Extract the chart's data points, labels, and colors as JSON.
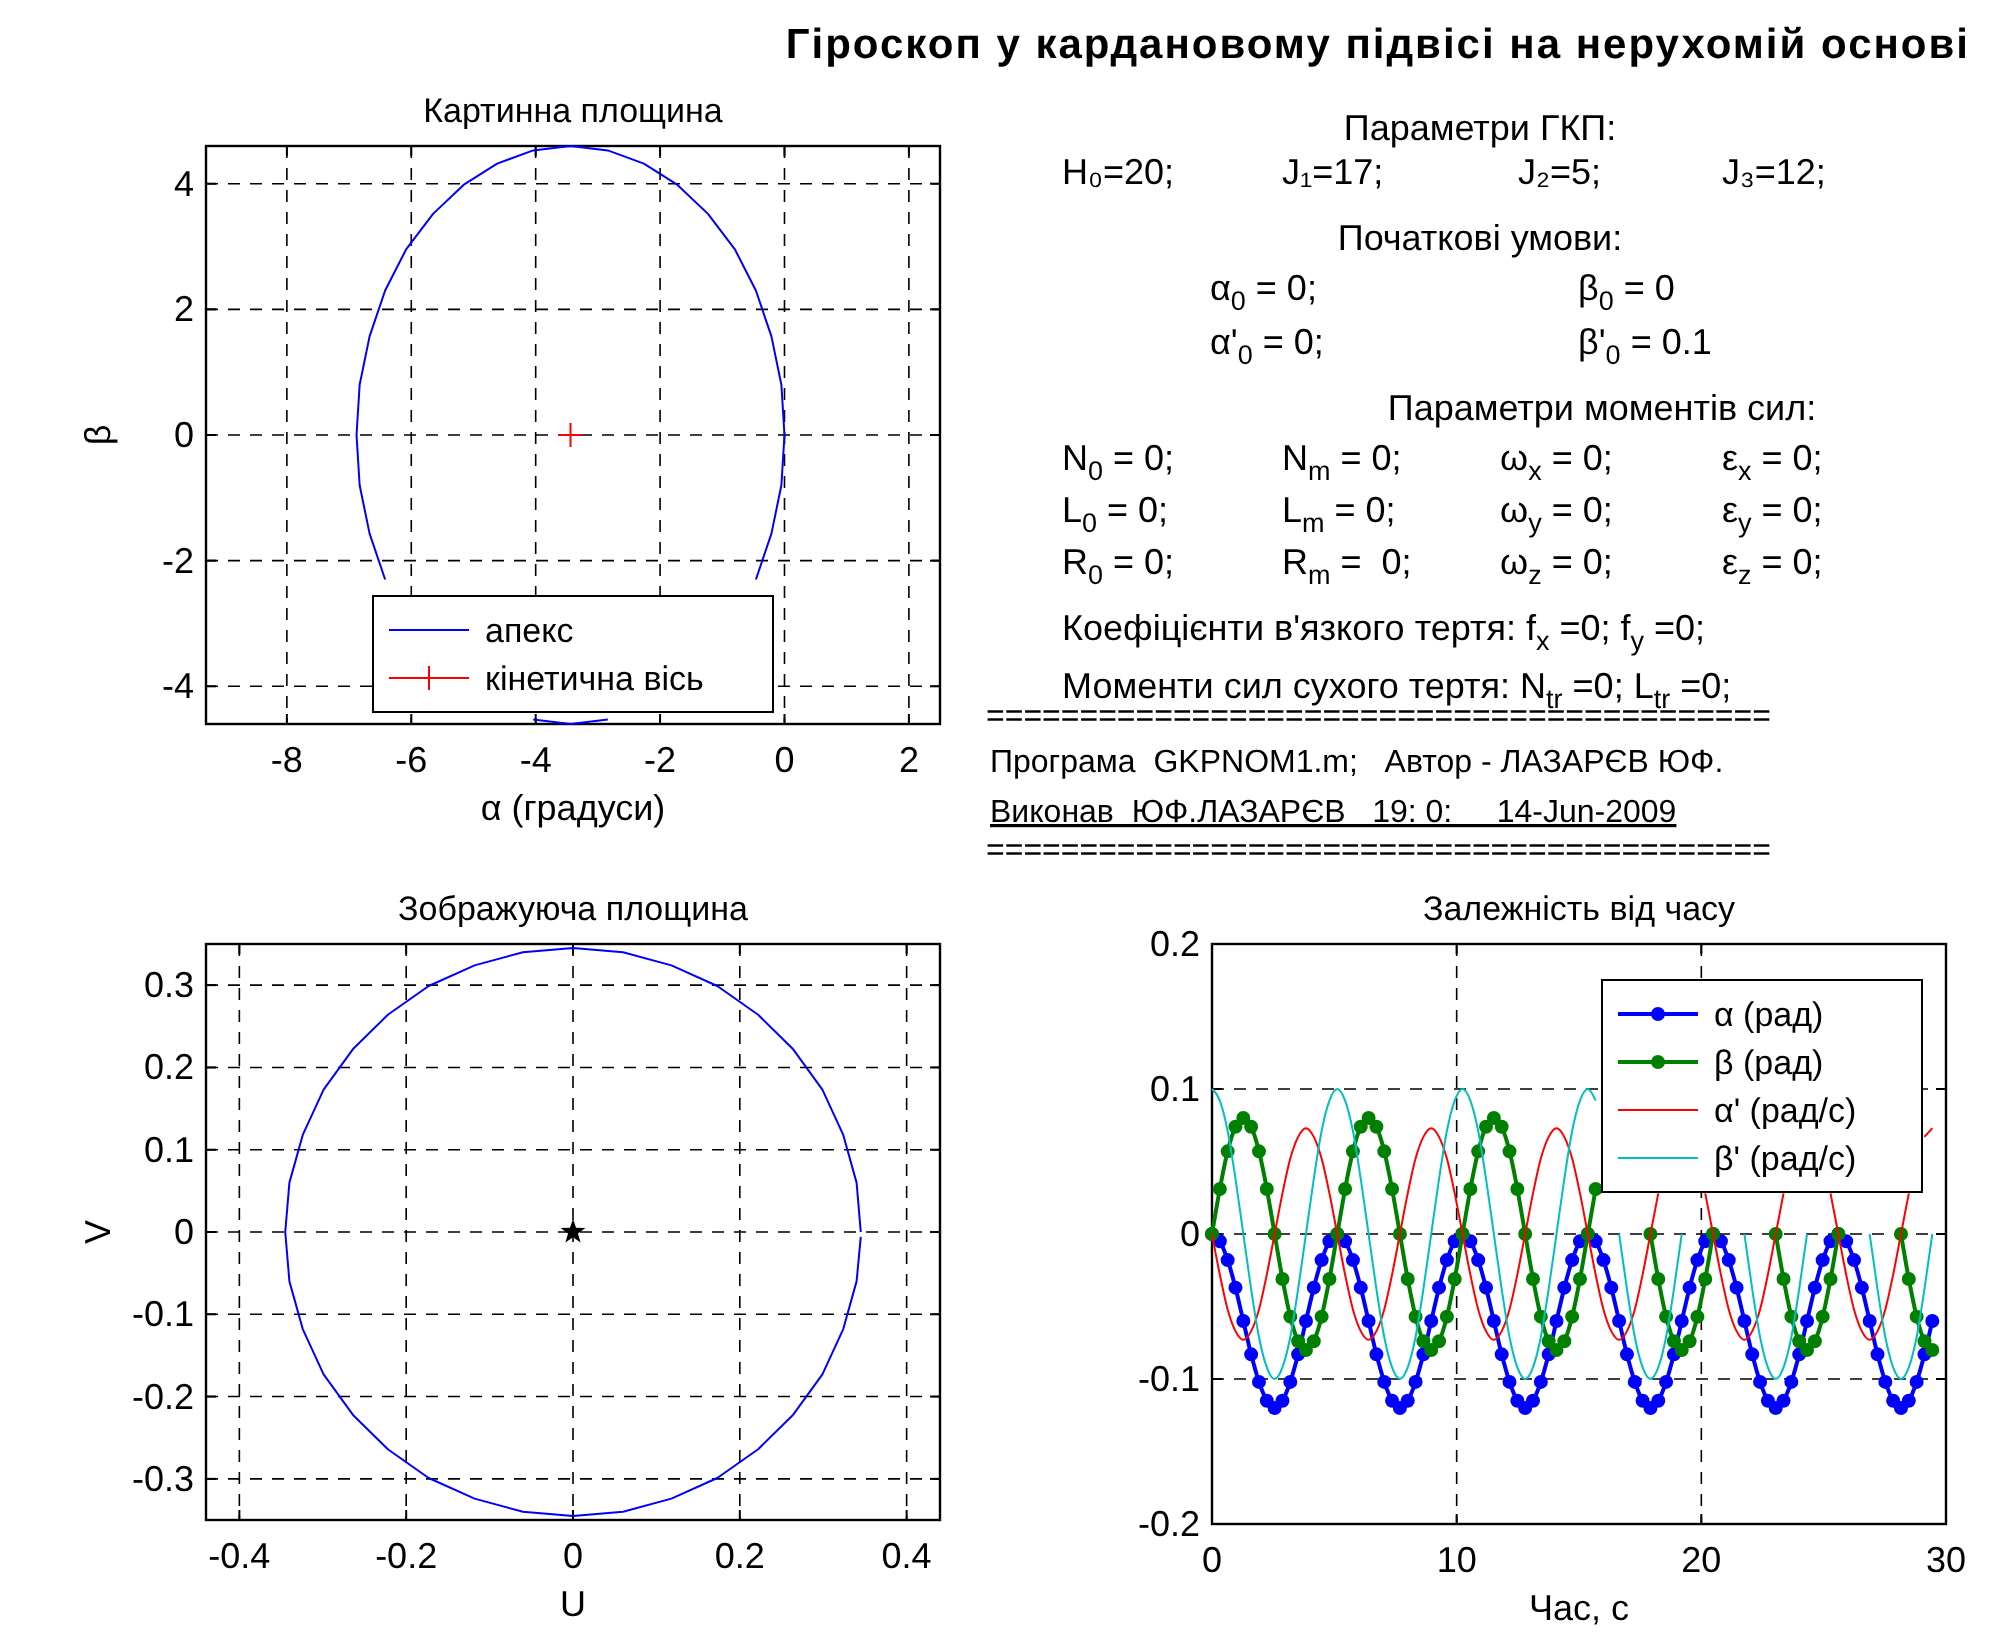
{
  "chart_data": [
    {
      "type": "line",
      "title": "Картинна площина",
      "xlabel": "α (градуси)",
      "ylabel": "β",
      "xlim": [
        -9.3,
        2.5
      ],
      "ylim": [
        -4.6,
        4.6
      ],
      "xticks": [
        -8,
        -6,
        -4,
        -2,
        0,
        2
      ],
      "yticks": [
        -4,
        -2,
        0,
        2,
        4
      ],
      "grid": true,
      "legend": "bottom",
      "series": [
        {
          "name": "апекс",
          "type": "line",
          "color": "#0000ff",
          "x": [
            0,
            -0.05,
            -0.21,
            -0.46,
            -0.8,
            -1.23,
            -1.72,
            -2.26,
            -2.84,
            -3.44,
            -4.04,
            -4.62,
            -5.16,
            -5.65,
            -6.08,
            -6.42,
            -6.67,
            -6.83,
            -6.88,
            -6.83,
            -6.67,
            -6.42,
            -6.08,
            -5.65,
            -5.16,
            -4.62,
            -4.04,
            -3.44,
            -2.84,
            -2.26,
            -1.72,
            -1.23,
            -0.8,
            -0.46,
            -0.21,
            -0.05,
            0
          ],
          "values": [
            0,
            0.8,
            1.57,
            2.3,
            2.96,
            3.52,
            3.98,
            4.32,
            4.53,
            4.6,
            4.53,
            4.32,
            3.98,
            3.52,
            2.96,
            2.3,
            1.57,
            0.8,
            0,
            -0.8,
            -1.57,
            -2.3,
            null,
            null,
            null,
            null,
            -4.53,
            -4.6,
            -4.53,
            null,
            null,
            null,
            null,
            -2.3,
            -1.57,
            -0.8,
            0
          ]
        },
        {
          "name": "кінетична вісь",
          "type": "scatter",
          "marker": "cross",
          "color": "#ff0000",
          "x": [
            -3.44
          ],
          "values": [
            0
          ]
        }
      ]
    },
    {
      "type": "other",
      "title": "Гіроскоп у кардановому підвісі на нерухомій основі",
      "annotations": [
        "Параметри ГКП:",
        "H₀=20;      J₁=17;      J₂=5;      J₃=12;",
        "Початкові умови:",
        "α$_{0}$ = 0;      β$_{0}$ = 0",
        "α'$_{0}$ = 0;      β'$_{0}$ = 0.1",
        "Параметри моментів сил:",
        "N$_{0}$ = 0;      N$_{m}$ = 0;      ω$_{x}$ = 0;      ε$_{x}$ = 0;",
        "L$_{0}$ = 0;      L$_{m}$ = 0;      ω$_{y}$ = 0;      ε$_{y}$ = 0;",
        "R$_{0}$ = 0;      R$_{m}$ =  0;      ω$_{z}$ = 0;      ε$_{z}$ = 0;",
        "Коефіцієнти в'язкого тертя: f$_{x}$ =0; f$_{y}$ =0;",
        "Моменти сил сухого тертя: N$_{tr}$ =0; L$_{tr}$ =0;",
        "==========================================",
        "Програма  GKPNOM1.m;   Автор - ЛАЗАРЄВ ЮФ.",
        "Виконав  ЮФ.ЛАЗАРЄВ   19: 0:     14-Jun-2009",
        "=========================================="
      ]
    },
    {
      "type": "line",
      "title": "Зображуюча площина",
      "xlabel": "U",
      "ylabel": "V",
      "xlim": [
        -0.44,
        0.44
      ],
      "ylim": [
        -0.35,
        0.35
      ],
      "xticks": [
        -0.4,
        -0.2,
        0,
        0.2,
        0.4
      ],
      "yticks": [
        -0.3,
        -0.2,
        -0.1,
        0,
        0.1,
        0.2,
        0.3
      ],
      "grid": true,
      "series": [
        {
          "type": "line",
          "color": "#0000ff",
          "x": [
            0.345,
            0.34,
            0.324,
            0.299,
            0.264,
            0.222,
            0.173,
            0.118,
            0.06,
            0,
            -0.06,
            -0.118,
            -0.173,
            -0.222,
            -0.264,
            -0.299,
            -0.324,
            -0.34,
            -0.345,
            -0.34,
            -0.324,
            -0.299,
            -0.264,
            -0.222,
            -0.173,
            -0.118,
            -0.06,
            0,
            0.06,
            0.118,
            0.173,
            0.222,
            0.264,
            0.299,
            0.324,
            0.34,
            0.345
          ],
          "values": [
            0,
            0.06,
            0.118,
            0.173,
            0.222,
            0.264,
            0.299,
            0.324,
            0.34,
            0.345,
            0.34,
            0.324,
            0.299,
            0.264,
            0.222,
            0.173,
            0.118,
            0.06,
            0,
            -0.06,
            -0.118,
            -0.173,
            -0.222,
            -0.264,
            -0.299,
            -0.324,
            -0.34,
            -0.345,
            -0.34,
            -0.324,
            -0.299,
            -0.264,
            -0.222,
            -0.173,
            -0.118,
            -0.06,
            -0.006
          ]
        },
        {
          "type": "scatter",
          "marker": "star",
          "color": "#000000",
          "x": [
            0
          ],
          "values": [
            0
          ]
        }
      ]
    },
    {
      "type": "line",
      "title": "Залежність від часу",
      "xlabel": "Час, с",
      "xlim": [
        0,
        30
      ],
      "ylim": [
        -0.2,
        0.2
      ],
      "xticks": [
        0,
        10,
        20,
        30
      ],
      "yticks": [
        -0.2,
        -0.1,
        0,
        0.1,
        0.2
      ],
      "grid": true,
      "legend": "top right",
      "x": [
        0,
        0.32,
        0.64,
        0.96,
        1.28,
        1.6,
        1.92,
        2.24,
        2.56,
        2.88,
        3.2,
        3.52,
        3.84,
        4.16,
        4.48,
        4.8,
        5.12,
        5.44,
        5.76,
        6.08,
        6.4,
        6.72,
        7.04,
        7.36,
        7.68,
        8,
        8.32,
        8.64,
        8.96,
        9.28,
        9.6,
        9.92,
        10.24,
        10.56,
        10.88,
        11.2,
        11.52,
        11.84,
        12.16,
        12.48,
        12.8,
        13.12,
        13.44,
        13.76,
        14.08,
        14.4,
        14.72,
        15.04,
        15.36,
        15.68,
        16,
        16.32,
        16.64,
        16.96,
        17.28,
        17.6,
        17.92,
        18.24,
        18.56,
        18.88,
        19.2,
        19.52,
        19.84,
        20.16,
        20.48,
        20.8,
        21.12,
        21.44,
        21.76,
        22.08,
        22.4,
        22.72,
        23.04,
        23.36,
        23.68,
        24,
        24.32,
        24.64,
        24.96,
        25.28,
        25.6,
        25.92,
        26.24,
        26.56,
        26.88,
        27.2,
        27.52,
        27.84,
        28.16,
        28.48,
        28.8,
        29.12,
        29.44
      ],
      "series": [
        {
          "name": "α (рад)",
          "type": "line",
          "marker": "circle",
          "color": "#0000ff",
          "values": [
            0,
            -0.005,
            -0.018,
            -0.037,
            -0.06,
            -0.083,
            -0.102,
            -0.115,
            -0.12,
            -0.115,
            -0.102,
            -0.083,
            -0.06,
            -0.037,
            -0.018,
            -0.005,
            0,
            -0.005,
            -0.018,
            -0.037,
            -0.06,
            -0.083,
            -0.102,
            -0.115,
            -0.12,
            -0.115,
            -0.102,
            -0.083,
            -0.06,
            -0.037,
            -0.018,
            -0.005,
            0,
            -0.005,
            -0.018,
            -0.037,
            -0.06,
            -0.083,
            -0.102,
            -0.115,
            -0.12,
            -0.115,
            -0.102,
            -0.083,
            -0.06,
            -0.037,
            -0.018,
            -0.005,
            0,
            -0.005,
            -0.018,
            -0.037,
            -0.06,
            -0.083,
            -0.102,
            -0.115,
            -0.12,
            -0.115,
            -0.102,
            -0.083,
            -0.06,
            -0.037,
            -0.018,
            -0.005,
            0,
            -0.005,
            -0.018,
            -0.037,
            -0.06,
            -0.083,
            -0.102,
            -0.115,
            -0.12,
            -0.115,
            -0.102,
            -0.083,
            -0.06,
            -0.037,
            -0.018,
            -0.005,
            0,
            -0.005,
            -0.018,
            -0.037,
            -0.06,
            -0.083,
            -0.102,
            -0.115,
            -0.12,
            -0.115,
            -0.102,
            -0.083,
            -0.06
          ]
        },
        {
          "name": "β (рад)",
          "type": "line",
          "marker": "circle",
          "color": "#008000",
          "values": [
            0,
            0.031,
            0.057,
            0.074,
            0.08,
            0.074,
            0.057,
            0.031,
            0,
            -0.031,
            -0.057,
            -0.074,
            -0.08,
            -0.074,
            -0.057,
            -0.031,
            0,
            0.031,
            0.057,
            0.074,
            0.08,
            0.074,
            0.057,
            0.031,
            0,
            -0.031,
            -0.057,
            -0.074,
            -0.08,
            -0.074,
            -0.057,
            -0.031,
            0,
            0.031,
            0.057,
            0.074,
            0.08,
            0.074,
            0.057,
            0.031,
            0,
            -0.031,
            -0.057,
            -0.074,
            -0.08,
            -0.074,
            -0.057,
            -0.031,
            0,
            0.031,
            null,
            null,
            null,
            null,
            null,
            null,
            0,
            -0.031,
            -0.057,
            -0.074,
            -0.08,
            -0.074,
            -0.057,
            -0.031,
            0,
            null,
            null,
            null,
            null,
            null,
            null,
            null,
            0,
            -0.031,
            -0.057,
            -0.074,
            -0.08,
            -0.074,
            -0.057,
            -0.031,
            0,
            null,
            null,
            null,
            null,
            null,
            null,
            null,
            0,
            -0.031,
            -0.057,
            -0.074,
            -0.08
          ]
        },
        {
          "name": "α' (рад/с)",
          "type": "line",
          "color": "#ff0000",
          "values": [
            0,
            -0.028,
            -0.052,
            -0.067,
            -0.073,
            -0.067,
            -0.052,
            -0.028,
            0,
            0.028,
            0.052,
            0.067,
            0.073,
            0.067,
            0.052,
            0.028,
            0,
            -0.028,
            -0.052,
            -0.067,
            -0.073,
            -0.067,
            -0.052,
            -0.028,
            0,
            0.028,
            0.052,
            0.067,
            0.073,
            0.067,
            0.052,
            0.028,
            0,
            -0.028,
            -0.052,
            -0.067,
            -0.073,
            -0.067,
            -0.052,
            -0.028,
            0,
            0.028,
            0.052,
            0.067,
            0.073,
            0.067,
            0.052,
            0.028,
            0,
            -0.028,
            -0.052,
            -0.067,
            -0.073,
            -0.067,
            -0.052,
            -0.028,
            0,
            0.028,
            null,
            null,
            null,
            null,
            null,
            0.028,
            0,
            -0.028,
            -0.052,
            -0.067,
            -0.073,
            -0.067,
            -0.052,
            -0.028,
            0,
            0.028,
            null,
            null,
            null,
            null,
            null,
            0.028,
            0,
            -0.028,
            -0.052,
            -0.067,
            -0.073,
            -0.067,
            -0.052,
            -0.028,
            0,
            0.028,
            null,
            0.067,
            0.073
          ]
        },
        {
          "name": "β' (рад/с)",
          "type": "line",
          "color": "#00bfbf",
          "values": [
            0.1,
            0.092,
            0.071,
            0.038,
            0,
            -0.038,
            -0.071,
            -0.092,
            -0.1,
            -0.092,
            -0.071,
            -0.038,
            0,
            0.038,
            0.071,
            0.092,
            0.1,
            0.092,
            0.071,
            0.038,
            0,
            -0.038,
            -0.071,
            -0.092,
            -0.1,
            -0.092,
            -0.071,
            -0.038,
            0,
            0.038,
            0.071,
            0.092,
            0.1,
            0.092,
            0.071,
            0.038,
            0,
            -0.038,
            -0.071,
            -0.092,
            -0.1,
            -0.092,
            -0.071,
            -0.038,
            0,
            0.038,
            0.071,
            0.092,
            0.1,
            0.092,
            null,
            null,
            0,
            -0.038,
            -0.071,
            -0.092,
            -0.1,
            -0.092,
            -0.071,
            -0.038,
            0,
            null,
            null,
            null,
            null,
            null,
            null,
            null,
            0,
            -0.038,
            -0.071,
            -0.092,
            -0.1,
            -0.092,
            -0.071,
            -0.038,
            0,
            null,
            null,
            null,
            null,
            null,
            null,
            null,
            0,
            -0.038,
            -0.071,
            -0.092,
            -0.1,
            -0.092,
            -0.071,
            -0.038,
            0
          ]
        }
      ]
    }
  ]
}
